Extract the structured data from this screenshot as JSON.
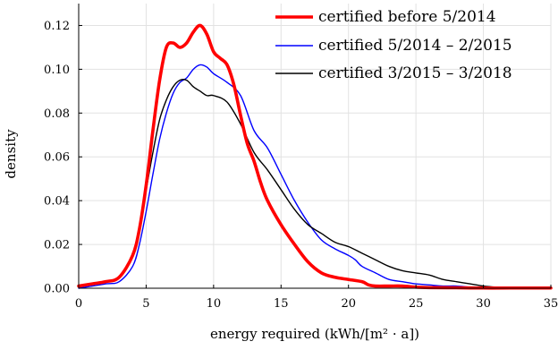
{
  "chart_data": {
    "type": "line",
    "title": "",
    "xlabel": "energy required (kWh/[m² · a])",
    "ylabel": "density",
    "xlim": [
      0,
      35
    ],
    "ylim": [
      0,
      0.13
    ],
    "xticks": [
      0,
      5,
      10,
      15,
      20,
      25,
      30,
      35
    ],
    "yticks": [
      0.0,
      0.02,
      0.04,
      0.06,
      0.08,
      0.1,
      0.12
    ],
    "ytick_labels": [
      "0.00",
      "0.02",
      "0.04",
      "0.06",
      "0.08",
      "0.10",
      "0.12"
    ],
    "grid": true,
    "legend_position": "top-right",
    "series": [
      {
        "name": "certified before 5/2014",
        "color": "#ff0000",
        "x": [
          0,
          1,
          2,
          3,
          4,
          4.5,
          5,
          5.5,
          6,
          6.5,
          7,
          7.5,
          8,
          8.5,
          9,
          9.5,
          10,
          10.5,
          11,
          11.5,
          12,
          12.5,
          13,
          13.5,
          14,
          15,
          16,
          17,
          18,
          19,
          20,
          21,
          21.5,
          22,
          23,
          24,
          25,
          26,
          28,
          30,
          32,
          35
        ],
        "y": [
          0.001,
          0.002,
          0.003,
          0.005,
          0.015,
          0.027,
          0.047,
          0.072,
          0.095,
          0.11,
          0.112,
          0.11,
          0.112,
          0.117,
          0.12,
          0.116,
          0.108,
          0.105,
          0.102,
          0.093,
          0.079,
          0.066,
          0.058,
          0.048,
          0.04,
          0.029,
          0.02,
          0.012,
          0.007,
          0.005,
          0.004,
          0.003,
          0.0015,
          0.001,
          0.001,
          0.001,
          0.0005,
          0.0003,
          0.0002,
          0.0001,
          0.0001,
          0.0001
        ]
      },
      {
        "name": "certified 5/2014 – 2/2015",
        "color": "#0000ff",
        "x": [
          0,
          1,
          2,
          3,
          4,
          4.5,
          5,
          5.5,
          6,
          6.5,
          7,
          7.5,
          8,
          8.5,
          9,
          9.5,
          10,
          11,
          12,
          13,
          14,
          15,
          16,
          17,
          18,
          19,
          20,
          20.5,
          21,
          22,
          23,
          24,
          25,
          26,
          27,
          28,
          29,
          30,
          32,
          35
        ],
        "y": [
          0.0,
          0.001,
          0.002,
          0.003,
          0.01,
          0.02,
          0.035,
          0.052,
          0.068,
          0.08,
          0.089,
          0.094,
          0.096,
          0.1,
          0.102,
          0.101,
          0.098,
          0.094,
          0.088,
          0.072,
          0.064,
          0.052,
          0.04,
          0.03,
          0.022,
          0.018,
          0.015,
          0.013,
          0.01,
          0.007,
          0.004,
          0.003,
          0.002,
          0.0015,
          0.001,
          0.001,
          0.0005,
          0.0003,
          0.0002,
          0.0001
        ]
      },
      {
        "name": "certified 3/2015 – 3/2018",
        "color": "#000000",
        "x": [
          0,
          1,
          2,
          3,
          4,
          4.5,
          5,
          5.5,
          6,
          6.5,
          7,
          7.5,
          8,
          8.5,
          9,
          9.5,
          10,
          11,
          12,
          13,
          14,
          15,
          16,
          17,
          18,
          19,
          20,
          21,
          22,
          23,
          24,
          25,
          26,
          27,
          28,
          29,
          30,
          31,
          32,
          34,
          35
        ],
        "y": [
          0.001,
          0.002,
          0.003,
          0.005,
          0.015,
          0.028,
          0.045,
          0.062,
          0.077,
          0.086,
          0.092,
          0.095,
          0.095,
          0.092,
          0.09,
          0.088,
          0.088,
          0.085,
          0.075,
          0.062,
          0.054,
          0.045,
          0.036,
          0.029,
          0.025,
          0.021,
          0.019,
          0.016,
          0.013,
          0.01,
          0.008,
          0.007,
          0.006,
          0.004,
          0.003,
          0.002,
          0.001,
          0.0005,
          0.0003,
          0.0002,
          0.0002
        ]
      }
    ]
  }
}
